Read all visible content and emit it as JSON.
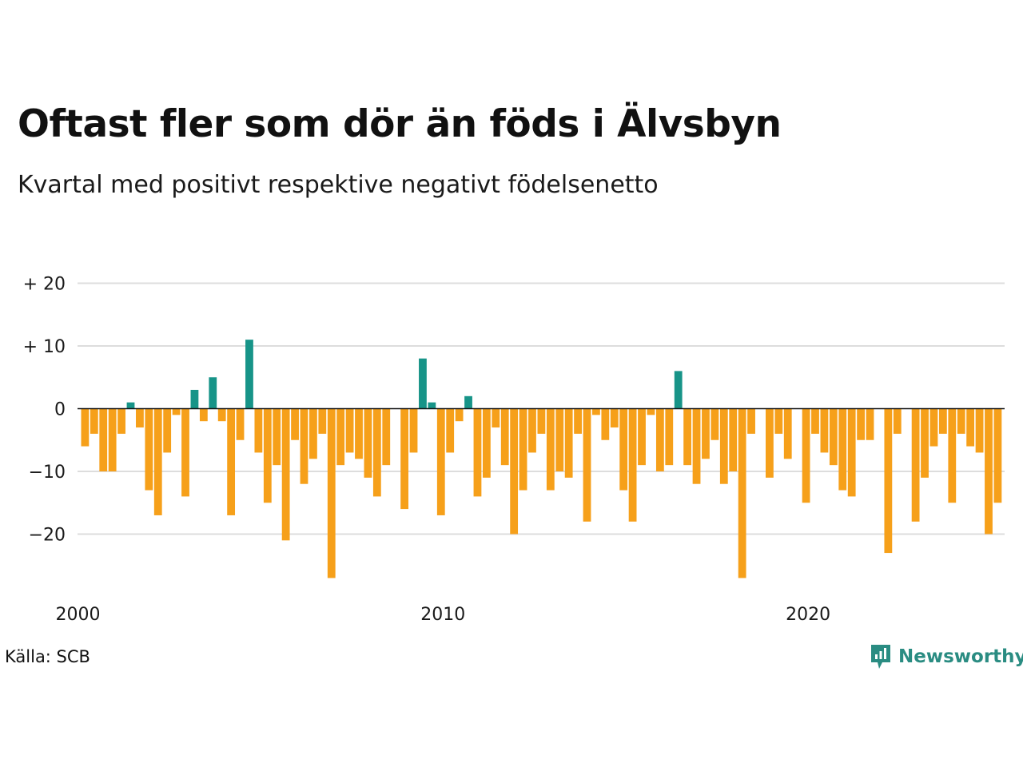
{
  "title": "Oftast fler som dör än föds i Älvsbyn",
  "subtitle": "Kvartal med positivt respektive negativt födelsenetto",
  "source": "Källa: SCB",
  "brand": {
    "name": "Newsworthy",
    "icon": "newsworthy-logo-icon"
  },
  "colors": {
    "positive": "#179488",
    "negative": "#f6a01a",
    "grid": "#dddddd",
    "zero": "#111111"
  },
  "chart_data": {
    "type": "bar",
    "x_start": "2000 Q1",
    "frequency": "quarterly",
    "x_tick_labels": [
      "2000",
      "2010",
      "2020"
    ],
    "y_tick_labels": [
      "+ 20",
      "+ 10",
      "0",
      "−10",
      "−20"
    ],
    "y_ticks": [
      20,
      10,
      0,
      -10,
      -20
    ],
    "ylim": [
      -28,
      20
    ],
    "grid": true,
    "values": [
      -6,
      -4,
      -10,
      -10,
      -4,
      1,
      -3,
      -13,
      -17,
      -7,
      -1,
      -14,
      3,
      -2,
      5,
      -2,
      -17,
      -5,
      11,
      -7,
      -15,
      -9,
      -21,
      -5,
      -12,
      -8,
      -4,
      -27,
      -9,
      -7,
      -8,
      -11,
      -14,
      -9,
      0,
      -16,
      -7,
      8,
      1,
      -17,
      -7,
      -2,
      2,
      -14,
      -11,
      -3,
      -9,
      -20,
      -13,
      -7,
      -4,
      -13,
      -10,
      -11,
      -4,
      -18,
      -1,
      -5,
      -3,
      -13,
      -18,
      -9,
      -1,
      -10,
      -9,
      6,
      -9,
      -12,
      -8,
      -5,
      -12,
      -10,
      -27,
      -4,
      0,
      -11,
      -4,
      -8,
      0,
      -15,
      -4,
      -7,
      -9,
      -13,
      -14,
      -5,
      -5,
      0,
      -23,
      -4,
      0,
      -18,
      -11,
      -6,
      -4,
      -15,
      -4,
      -6,
      -7,
      -20,
      -15
    ]
  }
}
